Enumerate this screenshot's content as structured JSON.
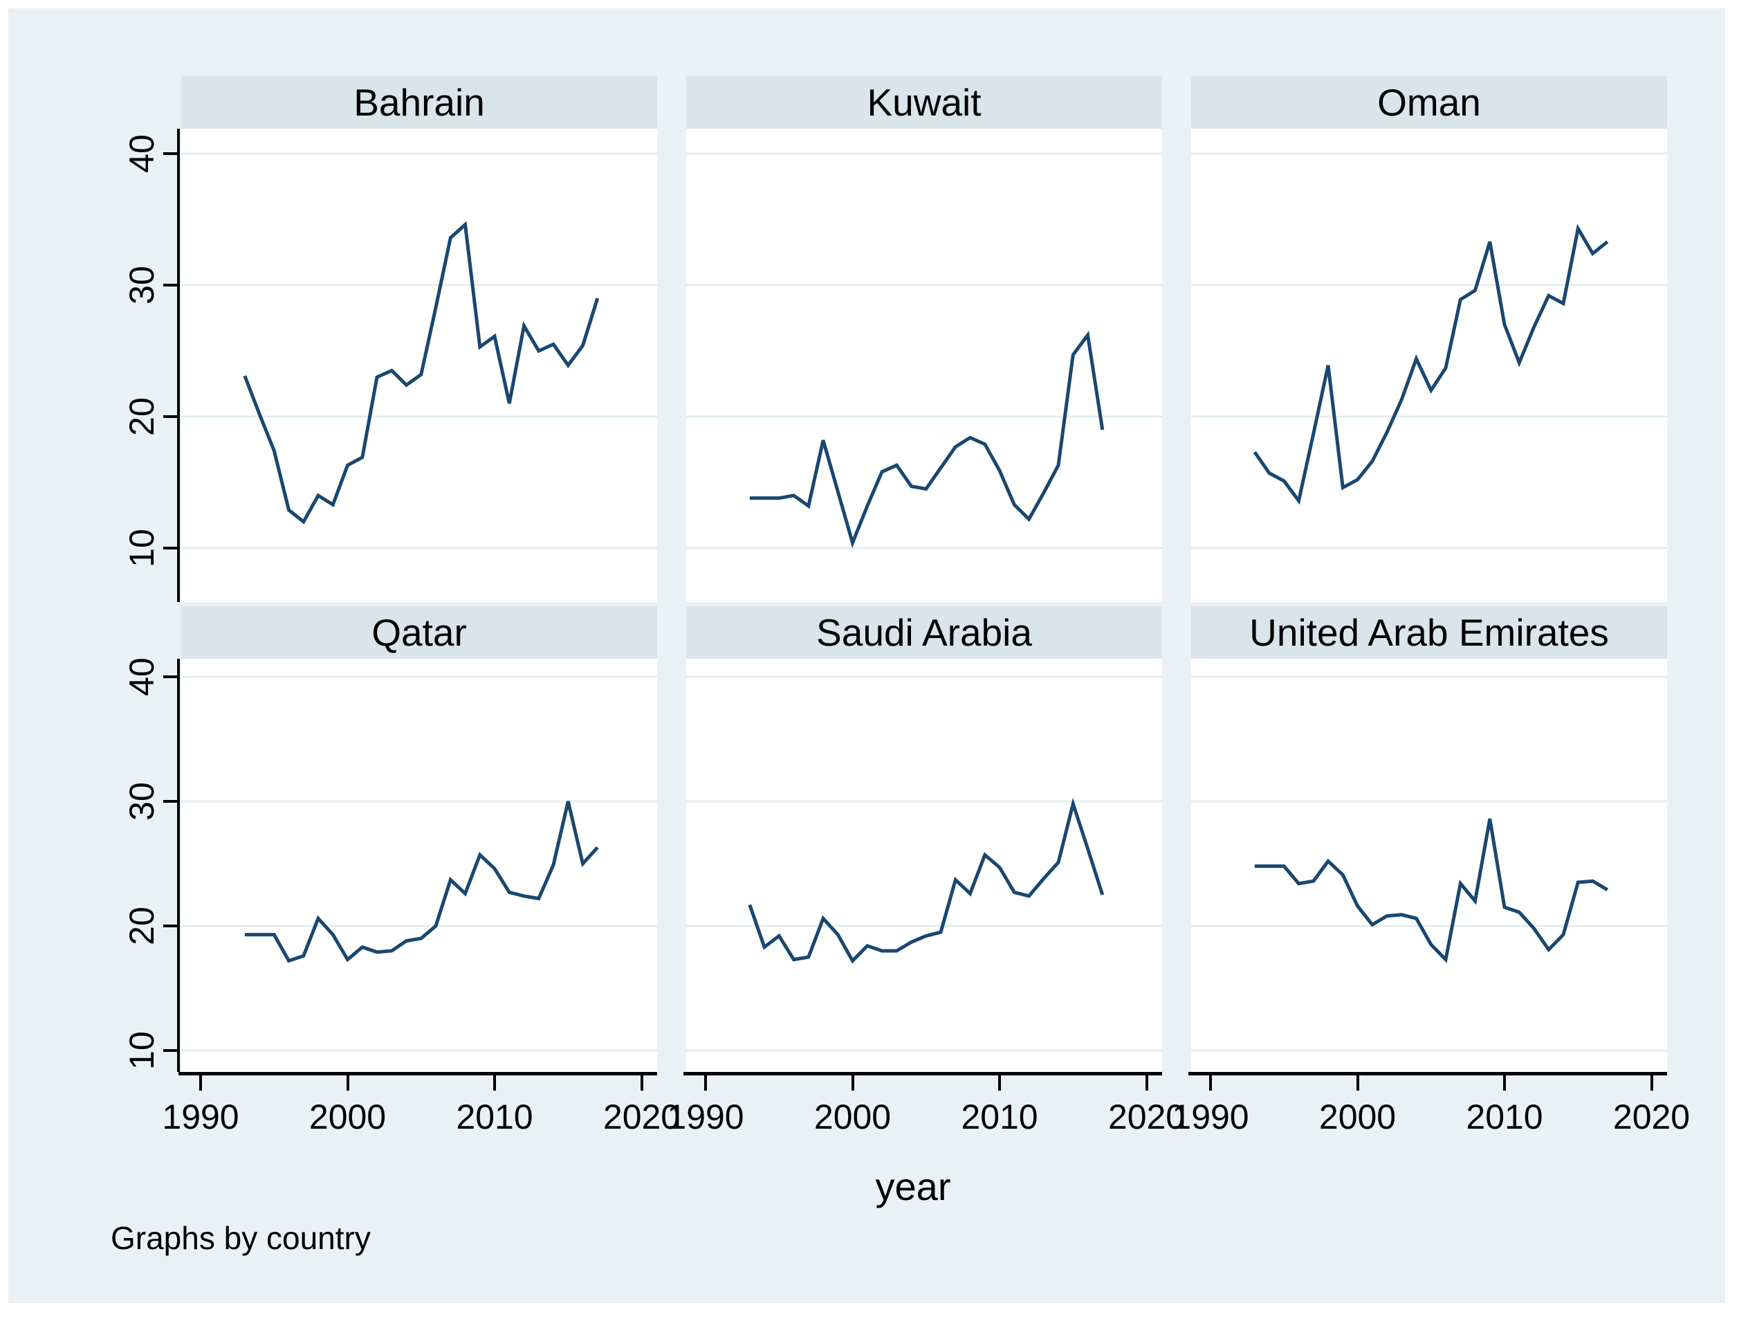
{
  "figure": {
    "xlabel": "year",
    "caption": "Graphs by country",
    "colors": {
      "page_background": "#ffffff",
      "graph_background": "#eaf1f4",
      "panel_title_background": "#d9e5ea",
      "plot_background": "#ffffff",
      "gridline": "#e4edf1",
      "axis": "#000000",
      "line": "#1a476f"
    }
  },
  "chart_data": {
    "type": "line",
    "layout": "2x3 small multiples by country (Stata-style by() graph)",
    "title": "",
    "xlabel": "year",
    "ylabel": "",
    "x": [
      1993,
      1994,
      1995,
      1996,
      1997,
      1998,
      1999,
      2000,
      2001,
      2002,
      2003,
      2004,
      2005,
      2006,
      2007,
      2008,
      2009,
      2010,
      2011,
      2012,
      2013,
      2014,
      2015,
      2016,
      2017
    ],
    "x_axis": {
      "range": [
        1990,
        2020
      ],
      "ticks": [
        1990,
        2000,
        2010,
        2020
      ],
      "tick_labels": [
        "1990",
        "2000",
        "2010",
        "2020"
      ]
    },
    "y_axis": {
      "range": [
        4.5,
        42
      ],
      "ticks": [
        40,
        30,
        20,
        10
      ],
      "tick_labels": [
        "40",
        "30",
        "20",
        "10"
      ]
    },
    "grid": true,
    "legend_position": "none",
    "series": [
      {
        "name": "Bahrain",
        "values": [
          23.1,
          20.2,
          17.4,
          12.9,
          12.0,
          14.0,
          13.3,
          16.3,
          16.9,
          23.0,
          23.5,
          22.4,
          23.2,
          28.3,
          33.6,
          34.6,
          25.3,
          26.1,
          21.0,
          26.9,
          25.0,
          25.5,
          23.9,
          25.4,
          29.0
        ]
      },
      {
        "name": "Kuwait",
        "values": [
          13.8,
          13.8,
          13.8,
          14.0,
          13.2,
          18.2,
          14.3,
          10.4,
          13.2,
          15.8,
          16.3,
          14.7,
          14.5,
          16.1,
          17.7,
          18.4,
          17.9,
          15.9,
          13.3,
          12.2,
          14.2,
          16.3,
          24.7,
          26.2,
          19.0
        ]
      },
      {
        "name": "Oman",
        "values": [
          17.3,
          15.7,
          15.1,
          13.6,
          18.7,
          23.9,
          14.6,
          15.2,
          16.6,
          18.8,
          21.3,
          24.4,
          22.0,
          23.7,
          28.9,
          29.6,
          33.3,
          27.0,
          24.1,
          26.8,
          29.2,
          28.6,
          34.3,
          32.4,
          33.3
        ]
      },
      {
        "name": "Qatar",
        "values": [
          19.3,
          19.3,
          19.3,
          17.2,
          17.6,
          20.6,
          19.3,
          17.3,
          18.3,
          17.9,
          18.0,
          18.8,
          19.0,
          20.0,
          23.7,
          22.6,
          25.7,
          24.6,
          22.7,
          22.4,
          22.2,
          24.9,
          30.0,
          25.0,
          26.3
        ]
      },
      {
        "name": "Saudi Arabia",
        "values": [
          21.7,
          18.3,
          19.2,
          17.3,
          17.5,
          20.6,
          19.3,
          17.2,
          18.4,
          18.0,
          18.0,
          18.7,
          19.2,
          19.5,
          23.7,
          22.6,
          25.7,
          24.7,
          22.7,
          22.4,
          23.8,
          25.1,
          29.8,
          26.2,
          22.5
        ]
      },
      {
        "name": "United Arab Emirates",
        "values": [
          24.8,
          24.8,
          24.8,
          23.4,
          23.6,
          25.2,
          24.1,
          21.6,
          20.1,
          20.8,
          20.9,
          20.6,
          18.5,
          17.3,
          23.4,
          22.0,
          28.6,
          21.5,
          21.1,
          19.8,
          18.1,
          19.3,
          23.5,
          23.6,
          22.9
        ]
      }
    ]
  }
}
